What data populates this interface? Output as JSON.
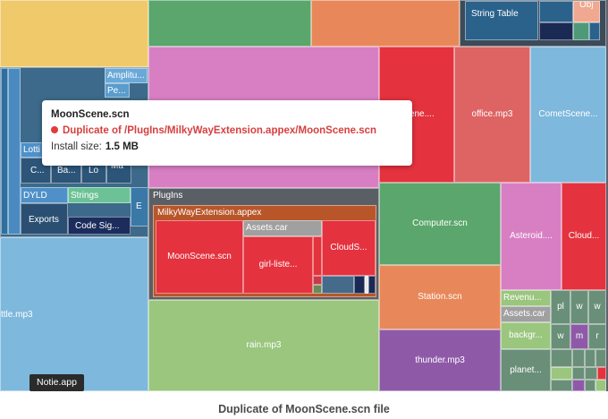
{
  "tooltip": {
    "title": "MoonScene.scn",
    "status": "Duplicate of /PlugIns/MilkyWayExtension.appex/MoonScene.scn",
    "size_label": "Install size:",
    "size_value": "1.5 MB"
  },
  "caption": "Duplicate of MoonScene.scn file",
  "badge": "Notie.app",
  "tiles": {
    "string_table": "String Table",
    "obj": "Obj",
    "amplitu": "Amplitu...",
    "pe": "Pe...",
    "lotti": "Lotti",
    "c": "C...",
    "ba": "Ba...",
    "lo": "Lo",
    "ma": "Ma",
    "dyld": "DYLD",
    "strings": "Strings",
    "exports": "Exports",
    "code_sig": "Code Sig...",
    "e": "E",
    "plugins": "PlugIns",
    "milkyway": "MilkyWayExtension.appex",
    "moonscene_plugin": "MoonScene.scn",
    "assets_car_plugin": "Assets.car",
    "girl_liste": "girl-liste...",
    "clouds_plugin": "CloudS...",
    "scene_partial": "Scene....",
    "office": "office.mp3",
    "comet": "CometScene...",
    "computer": "Computer.scn",
    "asteroid": "Asteroid....",
    "cloud": "Cloud...",
    "station": "Station.scn",
    "revenu": "Revenu...",
    "assets_car": "Assets.car",
    "backgr": "backgr...",
    "planet": "planet...",
    "pl": "pl",
    "w1": "w",
    "w2": "w",
    "w3": "w",
    "m": "m",
    "r": "r",
    "thunder": "thunder.mp3",
    "rain": "rain.mp3",
    "ttle": "ttle.mp3"
  }
}
